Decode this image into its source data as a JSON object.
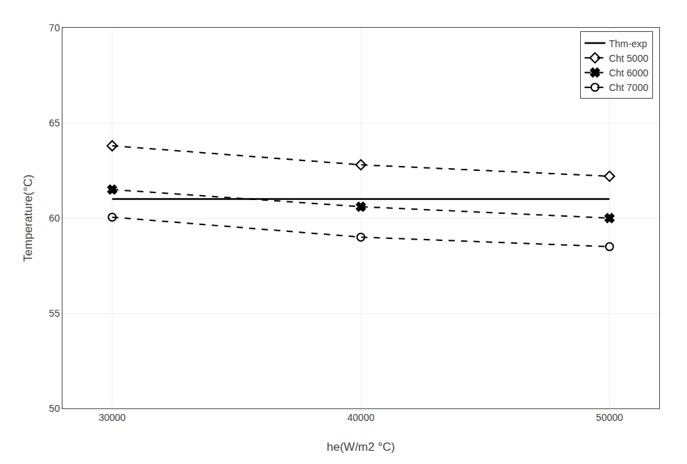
{
  "chart_data": {
    "type": "line",
    "x_label": "he(W/m2 °C)",
    "y_label": "Temperature(°C)",
    "x": [
      30000,
      40000,
      50000
    ],
    "series": [
      {
        "name": "Thm-exp",
        "color": "#000000",
        "line_style": "solid",
        "values": [
          61.0,
          61.0,
          61.0
        ]
      },
      {
        "name": "Cht 5000",
        "color": "#000000",
        "line_style": "dashed",
        "marker": "diamond",
        "values": [
          63.8,
          62.8,
          62.2
        ]
      },
      {
        "name": "Cht 6000",
        "color": "#000000",
        "line_style": "dashed",
        "marker": "x",
        "values": [
          61.5,
          60.6,
          60.0
        ]
      },
      {
        "name": "Cht 7000",
        "color": "#000000",
        "line_style": "dashed",
        "marker": "circle",
        "values": [
          60.05,
          59.0,
          58.5
        ]
      }
    ],
    "xlim": [
      28000,
      52000
    ],
    "ylim": [
      50,
      70
    ],
    "xticks": [
      30000,
      40000,
      50000
    ],
    "yticks": [
      50,
      55,
      60,
      65,
      70
    ],
    "grid": true,
    "legend": "upper right"
  }
}
